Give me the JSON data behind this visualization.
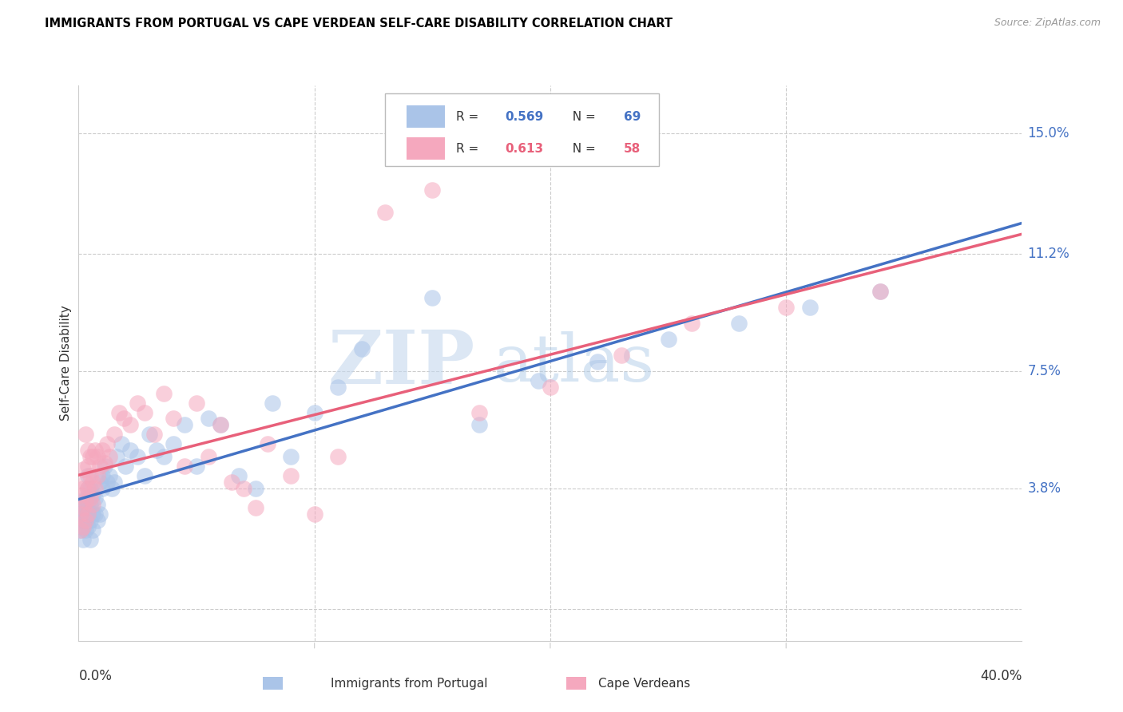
{
  "title": "IMMIGRANTS FROM PORTUGAL VS CAPE VERDEAN SELF-CARE DISABILITY CORRELATION CHART",
  "source": "Source: ZipAtlas.com",
  "ylabel": "Self-Care Disability",
  "xlim": [
    0.0,
    0.4
  ],
  "ylim": [
    -0.01,
    0.165
  ],
  "color_blue": "#aac4e8",
  "color_pink": "#f5a8be",
  "line_blue": "#4472c4",
  "line_pink": "#e8607a",
  "watermark_zip": "ZIP",
  "watermark_atlas": "atlas",
  "portugal_x": [
    0.001,
    0.001,
    0.001,
    0.001,
    0.002,
    0.002,
    0.002,
    0.002,
    0.002,
    0.002,
    0.003,
    0.003,
    0.003,
    0.003,
    0.003,
    0.004,
    0.004,
    0.004,
    0.004,
    0.004,
    0.005,
    0.005,
    0.005,
    0.005,
    0.006,
    0.006,
    0.006,
    0.007,
    0.007,
    0.008,
    0.008,
    0.009,
    0.009,
    0.01,
    0.01,
    0.011,
    0.012,
    0.013,
    0.014,
    0.015,
    0.016,
    0.018,
    0.02,
    0.022,
    0.025,
    0.028,
    0.03,
    0.033,
    0.036,
    0.04,
    0.045,
    0.05,
    0.055,
    0.06,
    0.068,
    0.075,
    0.082,
    0.09,
    0.1,
    0.11,
    0.12,
    0.15,
    0.17,
    0.195,
    0.22,
    0.25,
    0.28,
    0.31,
    0.34
  ],
  "portugal_y": [
    0.028,
    0.03,
    0.033,
    0.025,
    0.022,
    0.026,
    0.03,
    0.034,
    0.028,
    0.032,
    0.025,
    0.03,
    0.035,
    0.028,
    0.032,
    0.026,
    0.03,
    0.034,
    0.038,
    0.042,
    0.022,
    0.028,
    0.033,
    0.038,
    0.025,
    0.03,
    0.036,
    0.03,
    0.035,
    0.028,
    0.033,
    0.03,
    0.04,
    0.038,
    0.042,
    0.045,
    0.04,
    0.042,
    0.038,
    0.04,
    0.048,
    0.052,
    0.045,
    0.05,
    0.048,
    0.042,
    0.055,
    0.05,
    0.048,
    0.052,
    0.058,
    0.045,
    0.06,
    0.058,
    0.042,
    0.038,
    0.065,
    0.048,
    0.062,
    0.07,
    0.082,
    0.098,
    0.058,
    0.072,
    0.078,
    0.085,
    0.09,
    0.095,
    0.1
  ],
  "capeverde_x": [
    0.001,
    0.001,
    0.001,
    0.002,
    0.002,
    0.002,
    0.002,
    0.003,
    0.003,
    0.003,
    0.003,
    0.004,
    0.004,
    0.004,
    0.004,
    0.005,
    0.005,
    0.005,
    0.006,
    0.006,
    0.006,
    0.007,
    0.007,
    0.008,
    0.008,
    0.009,
    0.01,
    0.011,
    0.012,
    0.013,
    0.015,
    0.017,
    0.019,
    0.022,
    0.025,
    0.028,
    0.032,
    0.036,
    0.04,
    0.045,
    0.05,
    0.055,
    0.06,
    0.065,
    0.07,
    0.075,
    0.08,
    0.09,
    0.1,
    0.11,
    0.13,
    0.15,
    0.17,
    0.2,
    0.23,
    0.26,
    0.3,
    0.34
  ],
  "capeverde_y": [
    0.025,
    0.03,
    0.036,
    0.026,
    0.032,
    0.038,
    0.044,
    0.028,
    0.034,
    0.04,
    0.055,
    0.03,
    0.038,
    0.045,
    0.05,
    0.035,
    0.042,
    0.048,
    0.033,
    0.04,
    0.048,
    0.038,
    0.05,
    0.042,
    0.048,
    0.045,
    0.05,
    0.046,
    0.052,
    0.048,
    0.055,
    0.062,
    0.06,
    0.058,
    0.065,
    0.062,
    0.055,
    0.068,
    0.06,
    0.045,
    0.065,
    0.048,
    0.058,
    0.04,
    0.038,
    0.032,
    0.052,
    0.042,
    0.03,
    0.048,
    0.125,
    0.132,
    0.062,
    0.07,
    0.08,
    0.09,
    0.095,
    0.1
  ]
}
